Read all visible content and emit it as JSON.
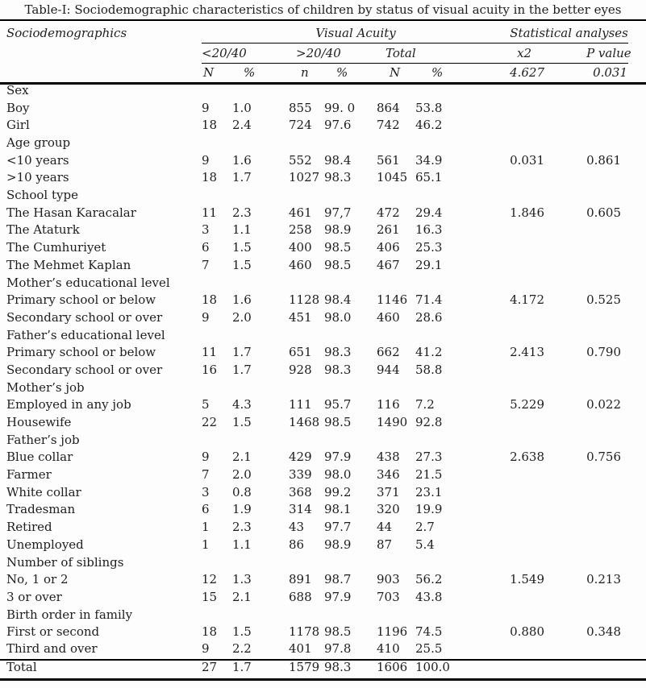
{
  "title": "Table-I: Sociodemographic characteristics of children by status of visual acuity in the better eyes",
  "header": {
    "sociodemographics": "Sociodemographics",
    "visual_acuity": "Visual Acuity",
    "statistical_analyses": "Statistical analyses",
    "sub": {
      "lt": "<20/40",
      "gt": ">20/40",
      "total": "Total",
      "x2": "x2",
      "pvalue": "P value"
    },
    "units": [
      "N",
      "%",
      "n",
      "%",
      "N",
      "%"
    ],
    "x2_value": "4.627",
    "p_value": "0.031"
  },
  "table": {
    "rows": [
      {
        "group": true,
        "label": "Sex"
      },
      {
        "group": false,
        "label": "Boy",
        "cells": [
          "9",
          "1.0",
          "855",
          "99. 0",
          "864",
          "53.8",
          "",
          ""
        ]
      },
      {
        "group": false,
        "label": "Girl",
        "cells": [
          "18",
          "2.4",
          "724",
          "97.6",
          "742",
          "46.2",
          "",
          ""
        ]
      },
      {
        "group": true,
        "label": "Age group"
      },
      {
        "group": false,
        "label": "<10 years",
        "cells": [
          "9",
          "1.6",
          "552",
          "98.4",
          "561",
          "34.9",
          "0.031",
          "0.861"
        ]
      },
      {
        "group": false,
        "label": ">10 years",
        "cells": [
          "18",
          "1.7",
          "1027",
          "98.3",
          "1045",
          "65.1",
          "",
          ""
        ]
      },
      {
        "group": true,
        "label": "School type"
      },
      {
        "group": false,
        "label": "The Hasan Karacalar",
        "cells": [
          "11",
          "2.3",
          "461",
          "97,7",
          "472",
          "29.4",
          "1.846",
          "0.605"
        ]
      },
      {
        "group": false,
        "label": "The Ataturk",
        "cells": [
          "3",
          "1.1",
          "258",
          "98.9",
          "261",
          "16.3",
          "",
          ""
        ]
      },
      {
        "group": false,
        "label": "The Cumhuriyet",
        "cells": [
          "6",
          "1.5",
          "400",
          "98.5",
          "406",
          "25.3",
          "",
          ""
        ]
      },
      {
        "group": false,
        "label": "The Mehmet Kaplan",
        "cells": [
          "7",
          "1.5",
          "460",
          "98.5",
          "467",
          "29.1",
          "",
          ""
        ]
      },
      {
        "group": true,
        "label": "Mother’s educational level"
      },
      {
        "group": false,
        "label": "Primary school or below",
        "cells": [
          "18",
          "1.6",
          "1128",
          "98.4",
          "1146",
          "71.4",
          "4.172",
          "0.525"
        ]
      },
      {
        "group": false,
        "label": "Secondary school or over",
        "cells": [
          "9",
          "2.0",
          "451",
          "98.0",
          "460",
          "28.6",
          "",
          ""
        ]
      },
      {
        "group": true,
        "label": "Father’s educational level"
      },
      {
        "group": false,
        "label": "Primary school or below",
        "cells": [
          "11",
          "1.7",
          "651",
          "98.3",
          "662",
          "41.2",
          "2.413",
          "0.790"
        ]
      },
      {
        "group": false,
        "label": "Secondary school or over",
        "cells": [
          "16",
          "1.7",
          "928",
          "98.3",
          "944",
          "58.8",
          "",
          ""
        ]
      },
      {
        "group": true,
        "label": "Mother’s job"
      },
      {
        "group": false,
        "label": "Employed in any job",
        "cells": [
          "5",
          "4.3",
          "111",
          "95.7",
          "116",
          "7.2",
          "5.229",
          "0.022"
        ]
      },
      {
        "group": false,
        "label": "Housewife",
        "cells": [
          "22",
          "1.5",
          "1468",
          "98.5",
          "1490",
          "92.8",
          "",
          ""
        ]
      },
      {
        "group": true,
        "label": "Father’s job"
      },
      {
        "group": false,
        "label": "Blue collar",
        "cells": [
          "9",
          "2.1",
          "429",
          "97.9",
          "438",
          "27.3",
          "2.638",
          "0.756"
        ]
      },
      {
        "group": false,
        "label": "Farmer",
        "cells": [
          "7",
          "2.0",
          "339",
          "98.0",
          "346",
          "21.5",
          "",
          ""
        ]
      },
      {
        "group": false,
        "label": "White collar",
        "cells": [
          "3",
          "0.8",
          "368",
          "99.2",
          "371",
          "23.1",
          "",
          ""
        ]
      },
      {
        "group": false,
        "label": "Tradesman",
        "cells": [
          "6",
          "1.9",
          "314",
          "98.1",
          "320",
          "19.9",
          "",
          ""
        ]
      },
      {
        "group": false,
        "label": "Retired",
        "cells": [
          "1",
          "2.3",
          "43",
          "97.7",
          "44",
          "2.7",
          "",
          ""
        ]
      },
      {
        "group": false,
        "label": "Unemployed",
        "cells": [
          "1",
          "1.1",
          "86",
          "98.9",
          "87",
          "5.4",
          "",
          ""
        ]
      },
      {
        "group": true,
        "label": "Number of siblings"
      },
      {
        "group": false,
        "label": "No, 1 or 2",
        "cells": [
          "12",
          "1.3",
          "891",
          "98.7",
          "903",
          "56.2",
          "1.549",
          "0.213"
        ]
      },
      {
        "group": false,
        "label": "3 or over",
        "cells": [
          "15",
          "2.1",
          "688",
          "97.9",
          "703",
          "43.8",
          "",
          ""
        ]
      },
      {
        "group": true,
        "label": "Birth order in family"
      },
      {
        "group": false,
        "label": "First or second",
        "cells": [
          "18",
          "1.5",
          "1178",
          "98.5",
          "1196",
          "74.5",
          "0.880",
          "0.348"
        ]
      },
      {
        "group": false,
        "label": "Third and over",
        "cells": [
          "9",
          "2.2",
          "401",
          "97.8",
          "410",
          "25.5",
          "",
          ""
        ]
      }
    ],
    "total": {
      "label": "Total",
      "cells": [
        "27",
        "1.7",
        "1579",
        "98.3",
        "1606",
        "100.0"
      ]
    }
  }
}
